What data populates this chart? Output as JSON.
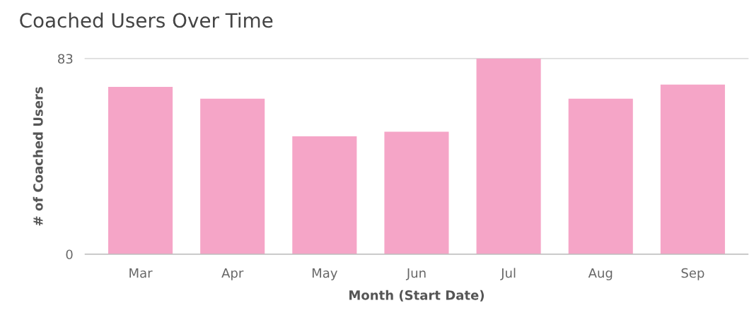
{
  "chart_data": {
    "type": "bar",
    "title": "Coached Users Over Time",
    "xlabel": "Month (Start Date)",
    "ylabel": "# of Coached Users",
    "categories": [
      "Mar",
      "Apr",
      "May",
      "Jun",
      "Jul",
      "Aug",
      "Sep"
    ],
    "values": [
      71,
      66,
      50,
      52,
      83,
      66,
      72
    ],
    "color": "#f5a5c7",
    "ylim": [
      0,
      83
    ],
    "yticks": [
      0,
      83
    ],
    "grid": "y",
    "legend": false
  }
}
